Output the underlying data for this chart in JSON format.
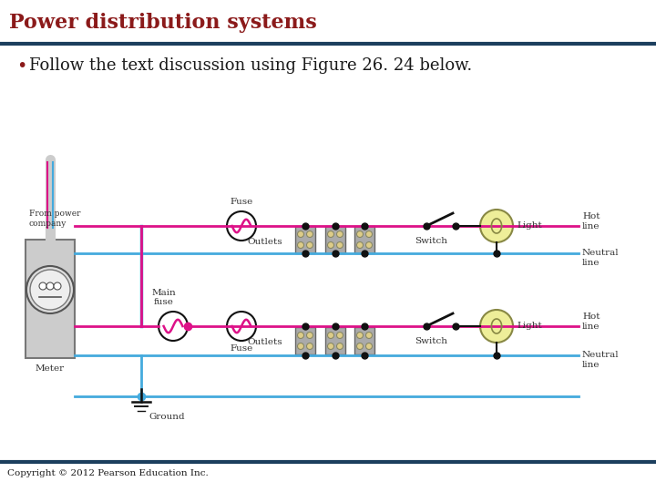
{
  "title": "Power distribution systems",
  "title_color": "#8B1A1A",
  "title_fontsize": 16,
  "bullet_text": "Follow the text discussion using Figure 26. 24 below.",
  "bullet_color": "#1A1A1A",
  "bullet_fontsize": 13,
  "header_line_color": "#1C3F5E",
  "footer_line_color": "#1C3F5E",
  "copyright_text": "Copyright © 2012 Pearson Education Inc.",
  "copyright_fontsize": 7.5,
  "bg_color": "#FFFFFF",
  "hot_color": "#DD1188",
  "neutral_color": "#44AADD",
  "black": "#111111",
  "gray_box": "#BBBBBB",
  "outlet_face": "#AAAAAA",
  "outlet_slot": "#DDCC88",
  "light_yellow": "#EEEE99",
  "diagram_text_color": "#333333",
  "diagram_text_size": 7.5
}
